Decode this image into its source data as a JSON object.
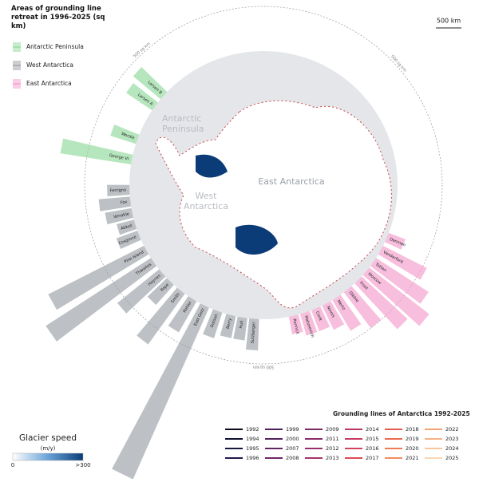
{
  "chart_data": {
    "type": "radial-bar",
    "title": "Areas of grounding line retreat in 1996-2025 (sq km)",
    "ref_ring": {
      "value": 500,
      "label": "500 sq km"
    },
    "series": [
      {
        "name": "Antarctic Peninsula",
        "color": "#8fd99a",
        "categories": [
          "Larsen B",
          "Larsen A",
          "Wordie",
          "George VI"
        ],
        "values": [
          400,
          350,
          300,
          800
        ]
      },
      {
        "name": "West Antarctica",
        "color": "#9a9ea4",
        "categories": [
          "Ferrigno",
          "Fox",
          "Venable",
          "Abbot",
          "Cosgrove",
          "Pine Island",
          "Thwaites",
          "Haynes",
          "Pope",
          "Smith",
          "Kohler",
          "East Getz",
          "Dotson",
          "Berry",
          "Hull",
          "Sulzberger"
        ],
        "values": [
          250,
          350,
          300,
          200,
          250,
          1200,
          1400,
          600,
          300,
          700,
          400,
          2100,
          300,
          250,
          250,
          350
        ]
      },
      {
        "name": "East Antarctica",
        "color": "#f29bcb",
        "categories": [
          "Rennick",
          "Matusevich",
          "Cook",
          "Ninnis",
          "Mertz",
          "Dibble",
          "Frost",
          "Moscow",
          "Totten",
          "Vanderford",
          "Denman"
        ],
        "values": [
          200,
          250,
          250,
          300,
          400,
          500,
          700,
          850,
          700,
          550,
          200
        ]
      }
    ],
    "map_labels": [
      "Antarctic Peninsula",
      "West Antarctica",
      "East Antarctica"
    ],
    "scale_bar": "500 km",
    "grounding_lines": {
      "title": "Grounding lines of Antarctica 1992-2025",
      "years": [
        1992,
        1994,
        1995,
        1996,
        1999,
        2000,
        2007,
        2008,
        2009,
        2011,
        2012,
        2013,
        2014,
        2015,
        2016,
        2017,
        2018,
        2019,
        2020,
        2021,
        2022,
        2023,
        2024,
        2025
      ],
      "colors": [
        "#0b0b1a",
        "#0f0f2e",
        "#16163f",
        "#1f1a4d",
        "#4a1f5c",
        "#56215f",
        "#622463",
        "#6e2766",
        "#7b2a68",
        "#8a2c6a",
        "#992f6a",
        "#a8326a",
        "#b73668",
        "#c53b63",
        "#d1425e",
        "#dc4b57",
        "#e55a50",
        "#eb6a4e",
        "#ef7b52",
        "#f28c5b",
        "#f4a172",
        "#f6b386",
        "#f8c59c",
        "#fad6b4"
      ]
    },
    "speed_legend": {
      "title": "Glacier speed",
      "unit": "(m/y)",
      "min": 0,
      "max": {
        "value": 300,
        "label": ">300"
      }
    }
  }
}
